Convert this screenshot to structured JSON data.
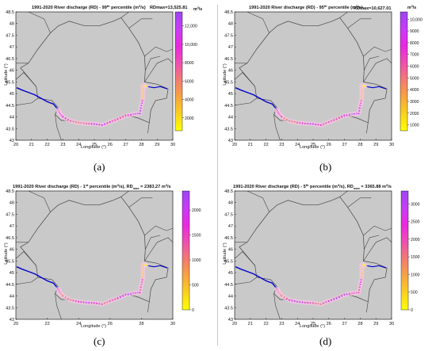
{
  "panels": [
    {
      "id": "a",
      "label": "(a)",
      "title_main": "1991-2020 River discharge (RD) - 99",
      "title_sup": "th",
      "title_tail": " percentile (m",
      "title_unit_sup": "3",
      "title_end": "/s)",
      "rdmax_text": "RDmax=13,525.81",
      "cb_unit": "m",
      "cb_unit_sup": "3",
      "cb_unit_end": "/s",
      "cb_ticks": [
        "12,000",
        "10,000",
        "8000",
        "6000",
        "4000",
        "2000"
      ],
      "cb_tick_values": [
        12000,
        10000,
        8000,
        6000,
        4000,
        2000
      ],
      "cb_max": 13525.81,
      "cb_min": 600,
      "lat_ticks": [
        "48.5",
        "48",
        "47.5",
        "47",
        "46.5",
        "46",
        "45.5",
        "45",
        "44.5",
        "44",
        "43.5",
        "43"
      ],
      "lon_ticks": [
        "20",
        "21",
        "22",
        "23",
        "24",
        "25",
        "26",
        "27",
        "28",
        "29",
        "30"
      ],
      "xlabel": "Longitude (°)",
      "ylabel": "Latitude (°)"
    },
    {
      "id": "b",
      "label": "(b)",
      "title_main": "1991-2020 River discharge (RD) - 95",
      "title_sup": "th",
      "title_tail": " percentile (m",
      "title_unit_sup": "3",
      "title_end": "/s)",
      "rdmax_text": "RDmax=10,627.01",
      "cb_unit": "m",
      "cb_unit_sup": "3",
      "cb_unit_end": "/s",
      "cb_ticks": [
        "10,000",
        "9000",
        "8000",
        "7000",
        "6000",
        "5000",
        "4000",
        "3000",
        "2000",
        "1000"
      ],
      "cb_tick_values": [
        10000,
        9000,
        8000,
        7000,
        6000,
        5000,
        4000,
        3000,
        2000,
        1000
      ],
      "cb_max": 10627.01,
      "cb_min": 500,
      "lat_ticks": [
        "48.5",
        "48",
        "47.5",
        "47",
        "46.5",
        "46",
        "45.5",
        "45",
        "44.5",
        "44",
        "43.5",
        "43"
      ],
      "lon_ticks": [
        "20",
        "21",
        "22",
        "23",
        "24",
        "25",
        "26",
        "27",
        "28",
        "29",
        "30"
      ],
      "xlabel": "Longitude (°)",
      "ylabel": "Latitude (°)"
    },
    {
      "id": "c",
      "label": "(c)",
      "title_main": "1991-2020 River discharge (RD) - 1",
      "title_sup": "st",
      "title_tail": " percentile (m",
      "title_unit_sup": "3",
      "title_end": "/s), RD",
      "rdmax_sub": "max",
      "rdmax_val": " = 2383.27 m",
      "rdmax_unit_sup": "3",
      "rdmax_unit_end": "/s",
      "cb_ticks": [
        "2000",
        "1500",
        "1000",
        "500",
        "0"
      ],
      "cb_tick_values": [
        2000,
        1500,
        1000,
        500,
        0
      ],
      "cb_max": 2383.27,
      "cb_min": 0,
      "lat_ticks": [
        "48.5",
        "48",
        "47.5",
        "47",
        "46.5",
        "46",
        "45.5",
        "45",
        "44.5",
        "44",
        "43.5",
        "43"
      ],
      "lon_ticks": [
        "20",
        "22",
        "24",
        "26",
        "28",
        "30"
      ],
      "xlabel": "Longitude (°)",
      "ylabel": "Latitude (°)"
    },
    {
      "id": "d",
      "label": "(d)",
      "title_main": "1991-2020 River discharge (RD) - 5",
      "title_sup": "th",
      "title_tail": " percentile (m",
      "title_unit_sup": "3",
      "title_end": "/s), RD",
      "rdmax_sub": "max",
      "rdmax_val": " = 3365.88 m",
      "rdmax_unit_sup": "3",
      "rdmax_unit_end": "/s",
      "cb_ticks": [
        "3000",
        "2500",
        "2000",
        "1500",
        "1000",
        "500",
        "0"
      ],
      "cb_tick_values": [
        3000,
        2500,
        2000,
        1500,
        1000,
        500,
        0
      ],
      "cb_max": 3365.88,
      "cb_min": 0,
      "lat_ticks": [
        "48.5",
        "48",
        "47.5",
        "47",
        "46.5",
        "46",
        "45.5",
        "45",
        "44.5",
        "44",
        "43.5",
        "43"
      ],
      "lon_ticks": [
        "20",
        "21",
        "22",
        "23",
        "24",
        "25",
        "26",
        "27",
        "28",
        "29",
        "30"
      ],
      "xlabel": "Longitude (°)",
      "ylabel": "Latitude (°)"
    }
  ],
  "map_extent": {
    "lon": [
      20,
      30
    ],
    "lat": [
      43,
      48.5
    ]
  },
  "colormap": [
    "#ffff00",
    "#fbd11f",
    "#f7a440",
    "#f27a72",
    "#ee4fb0",
    "#e829e0",
    "#c83cf5",
    "#9b45f2"
  ],
  "colors": {
    "land": "#c9c9c9",
    "border": "#444444",
    "danube_blue": "#0000cc",
    "frame": "#000000"
  }
}
